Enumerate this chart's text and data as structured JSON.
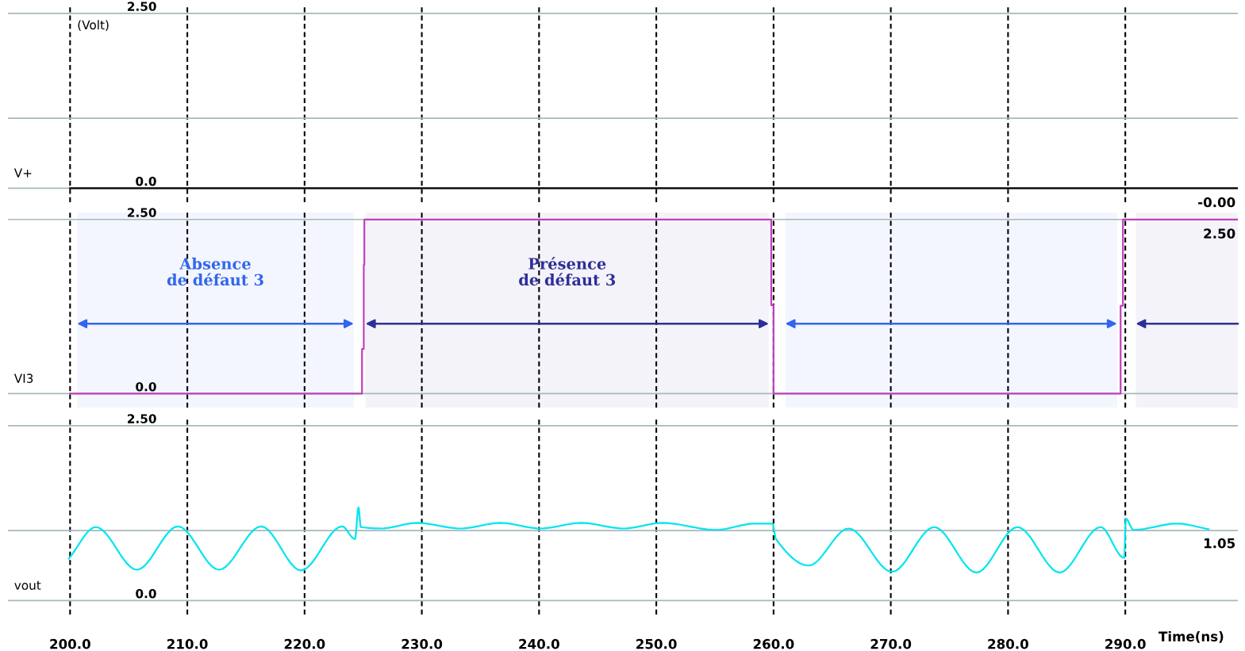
{
  "chart_data": [
    {
      "type": "line",
      "ylabel": "V+",
      "xlim": [
        194.7,
        299.6
      ],
      "xticks": [
        200,
        210,
        220,
        230,
        240,
        250,
        260,
        270,
        280,
        290
      ],
      "ylim": [
        -0.2,
        2.6
      ],
      "yticks": [
        {
          "value": 0,
          "label": "0.0"
        },
        {
          "value": 1.0,
          "label": null
        },
        {
          "value": 2.5,
          "label": "2.50"
        }
      ],
      "tick_labels": "y",
      "grid": true,
      "series": [
        {
          "color": "#000000",
          "x": [
            200,
            210,
            220,
            230,
            240,
            250,
            260,
            270,
            280,
            290,
            299.6
          ],
          "values": [
            0,
            0,
            0,
            0,
            0,
            0,
            0,
            0,
            0,
            0,
            0
          ]
        }
      ],
      "annotations": [
        "(Volt)",
        "-0.00"
      ]
    },
    {
      "type": "line",
      "ylabel": "VI3",
      "xlim": [
        194.7,
        299.6
      ],
      "xticks": [
        200,
        210,
        220,
        230,
        240,
        250,
        260,
        270,
        280,
        290
      ],
      "ylim": [
        -0.2,
        2.6
      ],
      "yticks": [
        {
          "value": 0,
          "label": "0.0"
        },
        {
          "value": 2.5,
          "label": "2.50"
        }
      ],
      "annotations": [
        "2.50"
      ],
      "tick_labels": "y",
      "grid": true,
      "series": [
        {
          "color": "#c040c0",
          "x": [
            200,
            224.9,
            224.9,
            225.05,
            225.05,
            225.1,
            225.1,
            259.8,
            259.8,
            260.0,
            260.0,
            289.6,
            289.6,
            289.8,
            289.8,
            299.6
          ],
          "values": [
            0,
            0,
            0.64,
            0.64,
            1.85,
            1.85,
            2.5,
            2.5,
            1.27,
            1.27,
            0,
            0,
            1.26,
            1.26,
            2.5,
            2.5
          ]
        }
      ],
      "bands": [
        {
          "axis": "x",
          "from": 200.6,
          "to": 224.2,
          "label": "Absence\nde défaut 3",
          "color": "#3366ee"
        },
        {
          "axis": "x",
          "from": 225.2,
          "to": 259.6,
          "label": "Présence\nde défaut 3",
          "color": "#2e2e99"
        },
        {
          "axis": "x",
          "from": 261.0,
          "to": 289.3,
          "label": null,
          "color": "#3366ee"
        },
        {
          "axis": "x",
          "from": 290.9,
          "to": 299.6,
          "label": null,
          "color": "#2e2e99"
        }
      ]
    },
    {
      "type": "line",
      "ylabel": "vout",
      "xlabel": "Time(ns)",
      "xlim": [
        194.7,
        299.6
      ],
      "xticks": [
        {
          "value": 200,
          "label": "200.0"
        },
        {
          "value": 210,
          "label": "210.0"
        },
        {
          "value": 220,
          "label": "220.0"
        },
        {
          "value": 230,
          "label": "230.0"
        },
        {
          "value": 240,
          "label": "240.0"
        },
        {
          "value": 250,
          "label": "250.0"
        },
        {
          "value": 260,
          "label": "260.0"
        },
        {
          "value": 270,
          "label": "270.0"
        },
        {
          "value": 280,
          "label": "280.0"
        },
        {
          "value": 290,
          "label": "290.0"
        }
      ],
      "ylim": [
        -0.2,
        2.6
      ],
      "yticks": [
        {
          "value": 0,
          "label": "0.0"
        },
        {
          "value": 1.0,
          "label": null
        },
        {
          "value": 2.5,
          "label": "2.50"
        }
      ],
      "annotations": [
        "1.05"
      ],
      "grid": true,
      "series": [
        {
          "color": "#00e5ee",
          "x": [
            199.9,
            202.2,
            205.7,
            209.2,
            212.7,
            216.3,
            219.7,
            223.2,
            224.3,
            224.6,
            224.8,
            226.5,
            229.6,
            233.3,
            236.7,
            240.1,
            243.6,
            247.2,
            250.5,
            255.1,
            258.4,
            259.9,
            260.2,
            263.0,
            266.4,
            270.1,
            273.7,
            277.3,
            280.8,
            284.4,
            287.9,
            289.9,
            290.05,
            290.7,
            294.4,
            297.1
          ],
          "values": [
            0.6,
            1.05,
            0.44,
            1.06,
            0.44,
            1.06,
            0.43,
            1.06,
            0.88,
            1.33,
            1.05,
            1.03,
            1.11,
            1.03,
            1.11,
            1.03,
            1.11,
            1.03,
            1.11,
            1.01,
            1.1,
            1.1,
            0.88,
            0.5,
            1.03,
            0.41,
            1.05,
            0.4,
            1.05,
            0.4,
            1.05,
            0.61,
            1.17,
            1.01,
            1.1,
            1.02
          ]
        }
      ]
    }
  ]
}
